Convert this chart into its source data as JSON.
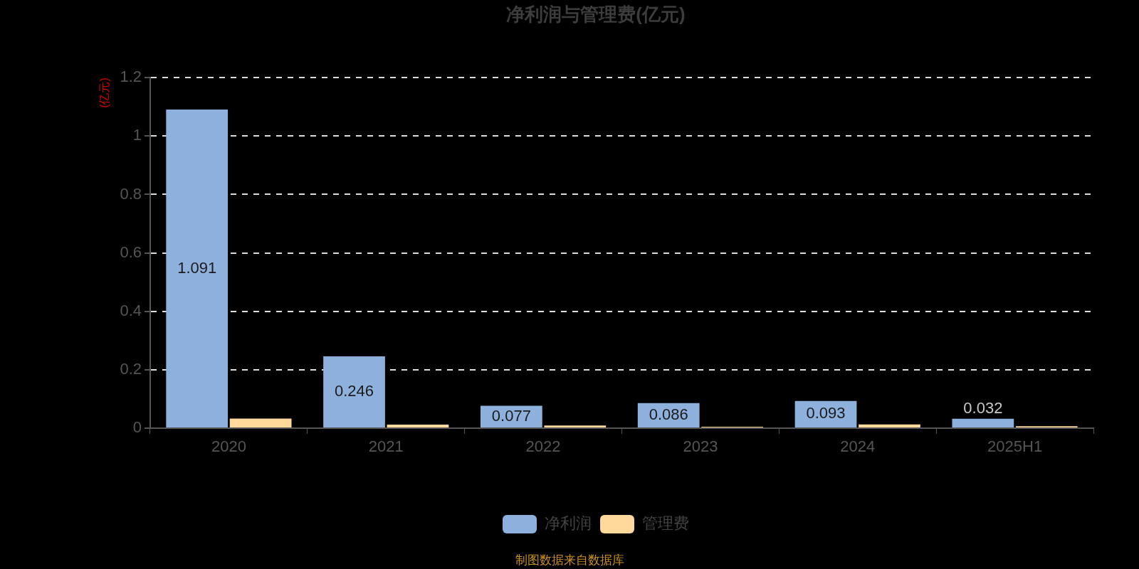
{
  "chart_data": {
    "type": "bar",
    "title": "净利润与管理费(亿元)",
    "ylabel": "(亿元)",
    "categories": [
      "2020",
      "2021",
      "2022",
      "2023",
      "2024",
      "2025H1"
    ],
    "series": [
      {
        "name": "净利润",
        "color": "#8eb0dc",
        "values": [
          1.091,
          0.246,
          0.077,
          0.086,
          0.093,
          0.032
        ],
        "value_labels": [
          "1.091",
          "0.246",
          "0.077",
          "0.086",
          "0.093",
          "0.032"
        ]
      },
      {
        "name": "管理费",
        "color": "#ffd99b",
        "values": [
          0.033,
          0.012,
          0.009,
          0.005,
          0.013,
          0.007
        ]
      }
    ],
    "ylim": [
      0,
      1.2
    ],
    "yticks": [
      0,
      0.2,
      0.4,
      0.6,
      0.8,
      1,
      1.2
    ],
    "grid": "y",
    "legend": "bottom",
    "annotations": [
      "制图数据来自数据库"
    ]
  }
}
